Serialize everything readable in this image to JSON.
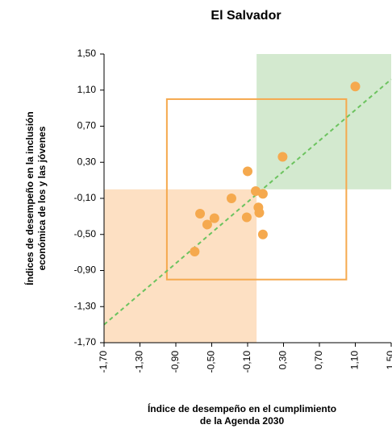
{
  "chart_data": {
    "type": "scatter",
    "title": "El Salvador",
    "x_label": [
      "Índice de desempeño en el cumplimiento",
      "de la Agenda 2030"
    ],
    "y_label": [
      "Índices de desempeño en la inclusión",
      "económica de los y las jóvenes"
    ],
    "series": [
      {
        "color": "#f5a94e",
        "x": [
          1.1,
          0.29,
          -0.1,
          -0.01,
          0.07,
          -0.28,
          0.02,
          0.03,
          -0.63,
          -0.47,
          -0.55,
          -0.11,
          0.07,
          -0.69
        ],
        "values": [
          1.14,
          0.36,
          0.2,
          -0.02,
          -0.05,
          -0.1,
          -0.2,
          -0.26,
          -0.27,
          -0.32,
          -0.39,
          -0.31,
          -0.5,
          -0.69
        ]
      }
    ],
    "xlim": [
      -1.7,
      1.5
    ],
    "ylim": [
      -1.7,
      1.5
    ],
    "xticks": [
      {
        "value": -1.7,
        "label": "-1,70"
      },
      {
        "value": -1.3,
        "label": "-1,30"
      },
      {
        "value": -0.9,
        "label": "-0,90"
      },
      {
        "value": -0.5,
        "label": "-0,50"
      },
      {
        "value": -0.1,
        "label": "-0,10"
      },
      {
        "value": 0.3,
        "label": "0,30"
      },
      {
        "value": 0.7,
        "label": "0,70"
      },
      {
        "value": 1.1,
        "label": "1,10"
      },
      {
        "value": 1.5,
        "label": "1,50"
      }
    ],
    "yticks": [
      {
        "value": -1.7,
        "label": "-1,70"
      },
      {
        "value": -1.3,
        "label": "-1,30"
      },
      {
        "value": -0.9,
        "label": "-0,90"
      },
      {
        "value": -0.5,
        "label": "-0,50"
      },
      {
        "value": -0.1,
        "label": "-0,10"
      },
      {
        "value": 0.3,
        "label": "0,30"
      },
      {
        "value": 0.7,
        "label": "0,70"
      },
      {
        "value": 1.1,
        "label": "1,10"
      },
      {
        "value": 1.5,
        "label": "1,50"
      }
    ],
    "regions": [
      {
        "xlim": [
          0,
          1.5
        ],
        "ylim": [
          0,
          1.5
        ],
        "color": "#d3e9cf"
      },
      {
        "xlim": [
          -1.7,
          0
        ],
        "ylim": [
          -1.7,
          0
        ],
        "color": "#fde0c3"
      }
    ],
    "box": {
      "xlim": [
        -1,
        1
      ],
      "ylim": [
        -1,
        1
      ],
      "color": "#f5a94e"
    },
    "trendline": {
      "x": [
        -1.7,
        1.5
      ],
      "y": [
        -1.5,
        1.22
      ],
      "color": "#6cc35f"
    }
  }
}
